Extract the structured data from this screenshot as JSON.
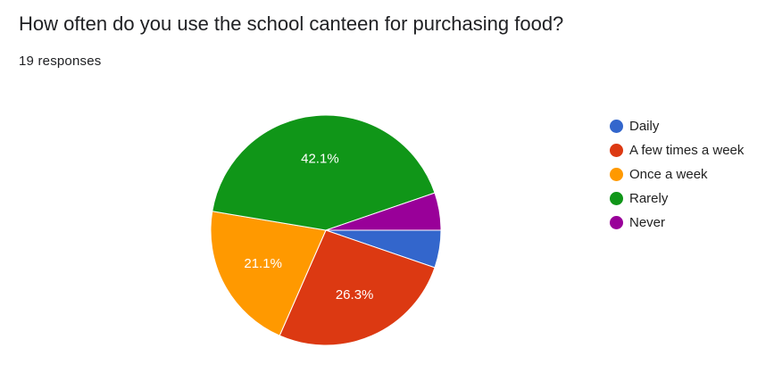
{
  "question": {
    "title": "How often do you use the school canteen for purchasing food?",
    "responses": "19 responses"
  },
  "chart_data": {
    "type": "pie",
    "title": "How often do you use the school canteen for purchasing food?",
    "subtitle": "19 responses",
    "categories": [
      "Daily",
      "A few times a week",
      "Once a week",
      "Rarely",
      "Never"
    ],
    "values": [
      1,
      5,
      4,
      8,
      1
    ],
    "percent_labels": [
      "",
      "26.3%",
      "21.1%",
      "42.1%",
      ""
    ],
    "colors": [
      "#3366cc",
      "#dc3912",
      "#ff9900",
      "#109618",
      "#990099"
    ],
    "legend_position": "right"
  }
}
